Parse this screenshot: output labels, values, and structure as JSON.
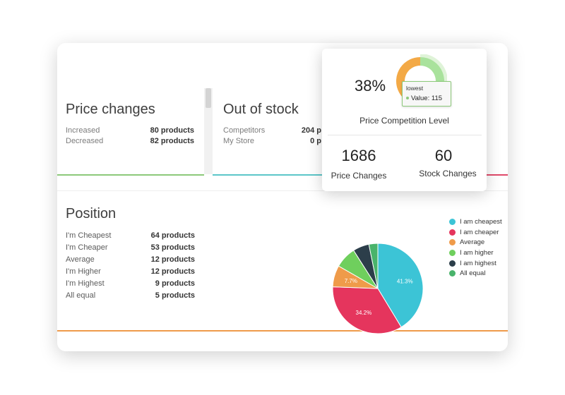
{
  "price_changes": {
    "title": "Price changes",
    "rows": [
      {
        "label": "Increased",
        "value": "80 products"
      },
      {
        "label": "Decreased",
        "value": "82 products"
      }
    ]
  },
  "out_of_stock": {
    "title": "Out of stock",
    "rows": [
      {
        "label": "Competitors",
        "value": "204 p"
      },
      {
        "label": "My Store",
        "value": "0 p"
      }
    ]
  },
  "position": {
    "title": "Position",
    "rows": [
      {
        "label": "I'm Cheapest",
        "value": "64 products"
      },
      {
        "label": "I'm Cheaper",
        "value": "53 products"
      },
      {
        "label": "Average",
        "value": "12 products"
      },
      {
        "label": "I'm Higher",
        "value": "12 products"
      },
      {
        "label": "I'm Highest",
        "value": "9 products"
      },
      {
        "label": "All equal",
        "value": "5 products"
      }
    ]
  },
  "chart_data": {
    "type": "pie",
    "categories": [
      "I am cheapest",
      "I am cheaper",
      "Average",
      "I am higher",
      "I am highest",
      "All equal"
    ],
    "values": [
      41.3,
      34.2,
      7.7,
      7.7,
      5.8,
      3.2
    ],
    "labels": [
      "41.3%",
      "34.2%",
      "7.7%",
      "",
      "",
      ""
    ],
    "colors": [
      "#3cc4d6",
      "#e5355d",
      "#ef9b4a",
      "#6fcf5d",
      "#2c3e4a",
      "#49b36b"
    ],
    "legend_position": "right"
  },
  "summary": {
    "competition_percent": "38%",
    "competition_label": "Price Competition Level",
    "competition_value": 38,
    "price_changes_count": "1686",
    "price_changes_label": "Price Changes",
    "stock_changes_count": "60",
    "stock_changes_label": "Stock Changes",
    "tooltip_title": "lowest",
    "tooltip_value": "Value: 115"
  }
}
